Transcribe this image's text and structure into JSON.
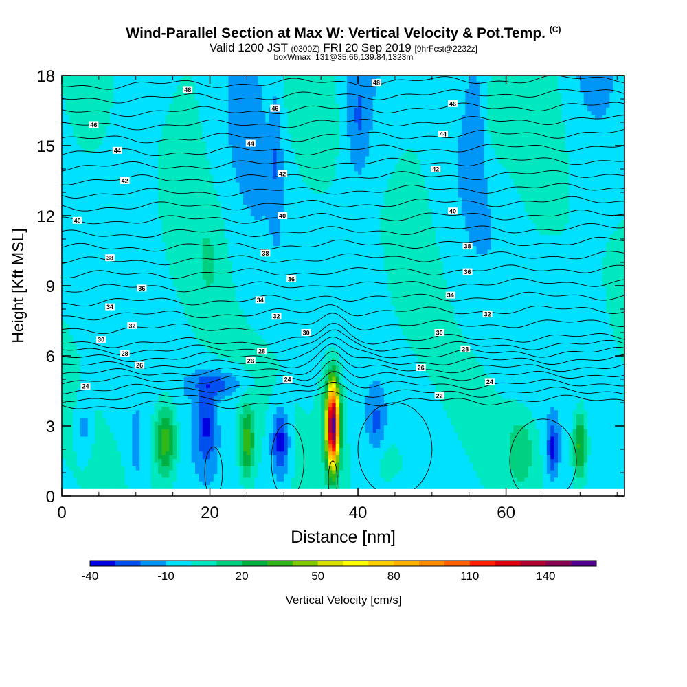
{
  "figure": {
    "title": "Wind-Parallel Section at Max W: Vertical Velocity & Pot.Temp.",
    "title_mark": "(C)",
    "subtitle_parts": [
      "Valid 1200 JST ",
      "(0300Z)",
      " FRI 20 Sep 2019 ",
      "[9hrFcst@2232z]"
    ],
    "subtitle2": "boxWmax=131@35.66,139.84,1323m"
  },
  "chart_data": {
    "type": "heatmap",
    "xlabel": "Distance [nm]",
    "ylabel": "Height [Kft MSL]",
    "xlim": [
      0,
      76
    ],
    "ylim": [
      0,
      18
    ],
    "xticks": [
      0,
      20,
      40,
      60
    ],
    "yticks": [
      0,
      3,
      6,
      9,
      12,
      15,
      18
    ],
    "background_field": "vertical velocity (cm/s), light cyan ~ -10..0 dominant",
    "updraft_core": {
      "x": 36.6,
      "y_range": [
        0.3,
        5.5
      ],
      "max": 131
    },
    "colorbar": {
      "label": "Vertical Velocity [cm/s]",
      "levels": [
        -40,
        -30,
        -20,
        -10,
        0,
        10,
        20,
        30,
        40,
        50,
        60,
        70,
        80,
        90,
        100,
        110,
        120,
        130,
        140,
        150,
        160
      ],
      "tick_labels": [
        "-40",
        "-10",
        "20",
        "50",
        "80",
        "110",
        "140"
      ],
      "tick_values": [
        -40,
        -10,
        20,
        50,
        80,
        110,
        140
      ],
      "colors": [
        "#0000e0",
        "#0050f0",
        "#0096f8",
        "#00e0ff",
        "#00e8c0",
        "#00d080",
        "#00b040",
        "#30b818",
        "#80c800",
        "#d8e000",
        "#ffff00",
        "#ffd000",
        "#ffb000",
        "#ff8c00",
        "#ff6000",
        "#ff2000",
        "#e00010",
        "#b00030",
        "#880050",
        "#500090"
      ]
    },
    "isentropes": {
      "variable": "potential temperature (C)",
      "interval": 1,
      "labels": [
        {
          "x": 3.2,
          "y": 4.7,
          "t": "24"
        },
        {
          "x": 30.5,
          "y": 5.0,
          "t": "24"
        },
        {
          "x": 57.8,
          "y": 4.9,
          "t": "24"
        },
        {
          "x": 51.0,
          "y": 4.3,
          "t": "22"
        },
        {
          "x": 10.5,
          "y": 5.6,
          "t": "26"
        },
        {
          "x": 25.5,
          "y": 5.8,
          "t": "26"
        },
        {
          "x": 48.5,
          "y": 5.5,
          "t": "26"
        },
        {
          "x": 8.5,
          "y": 6.1,
          "t": "28"
        },
        {
          "x": 27.0,
          "y": 6.2,
          "t": "28"
        },
        {
          "x": 54.5,
          "y": 6.3,
          "t": "28"
        },
        {
          "x": 5.3,
          "y": 6.7,
          "t": "30"
        },
        {
          "x": 33.0,
          "y": 7.0,
          "t": "30"
        },
        {
          "x": 51.0,
          "y": 7.0,
          "t": "30"
        },
        {
          "x": 9.5,
          "y": 7.3,
          "t": "32"
        },
        {
          "x": 29.0,
          "y": 7.7,
          "t": "32"
        },
        {
          "x": 57.5,
          "y": 7.8,
          "t": "32"
        },
        {
          "x": 6.5,
          "y": 8.1,
          "t": "34"
        },
        {
          "x": 26.8,
          "y": 8.4,
          "t": "34"
        },
        {
          "x": 52.5,
          "y": 8.6,
          "t": "34"
        },
        {
          "x": 10.8,
          "y": 8.9,
          "t": "36"
        },
        {
          "x": 31.0,
          "y": 9.3,
          "t": "36"
        },
        {
          "x": 54.8,
          "y": 9.6,
          "t": "36"
        },
        {
          "x": 6.5,
          "y": 10.2,
          "t": "38"
        },
        {
          "x": 27.5,
          "y": 10.4,
          "t": "38"
        },
        {
          "x": 54.8,
          "y": 10.7,
          "t": "38"
        },
        {
          "x": 2.1,
          "y": 11.8,
          "t": "40"
        },
        {
          "x": 29.8,
          "y": 12.0,
          "t": "40"
        },
        {
          "x": 52.8,
          "y": 12.2,
          "t": "40"
        },
        {
          "x": 8.5,
          "y": 13.5,
          "t": "42"
        },
        {
          "x": 29.8,
          "y": 13.8,
          "t": "42"
        },
        {
          "x": 50.5,
          "y": 14.0,
          "t": "42"
        },
        {
          "x": 7.5,
          "y": 14.8,
          "t": "44"
        },
        {
          "x": 25.5,
          "y": 15.1,
          "t": "44"
        },
        {
          "x": 51.5,
          "y": 15.5,
          "t": "44"
        },
        {
          "x": 4.3,
          "y": 15.9,
          "t": "46"
        },
        {
          "x": 28.8,
          "y": 16.6,
          "t": "46"
        },
        {
          "x": 52.8,
          "y": 16.8,
          "t": "46"
        },
        {
          "x": 17.0,
          "y": 17.4,
          "t": "48"
        },
        {
          "x": 42.5,
          "y": 17.7,
          "t": "48"
        }
      ]
    }
  }
}
